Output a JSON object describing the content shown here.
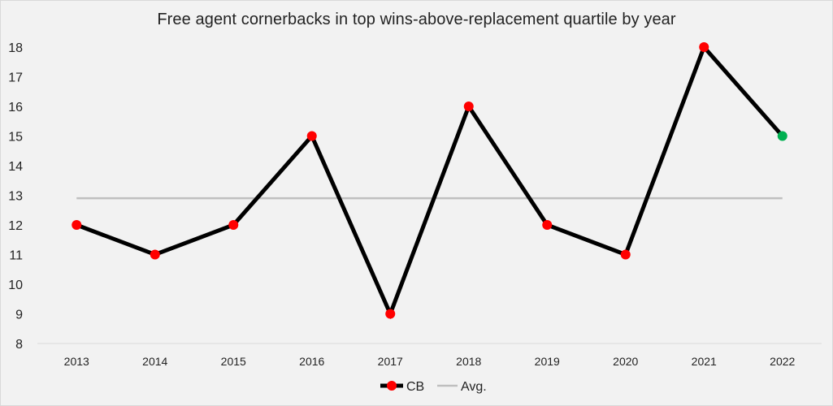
{
  "chart_data": {
    "type": "line",
    "title": "Free agent cornerbacks in top wins-above-replacement  quartile by year",
    "xlabel": "",
    "ylabel": "",
    "categories": [
      "2013",
      "2014",
      "2015",
      "2016",
      "2017",
      "2018",
      "2019",
      "2020",
      "2021",
      "2022"
    ],
    "ylim": [
      8,
      18
    ],
    "yticks": [
      8,
      9,
      10,
      11,
      12,
      13,
      14,
      15,
      16,
      17,
      18
    ],
    "grid": false,
    "legend_position": "bottom",
    "series": [
      {
        "name": "CB",
        "values": [
          12,
          11,
          12,
          15,
          9,
          16,
          12,
          11,
          18,
          15
        ],
        "line_color": "#000000",
        "marker_color": "#ff0000",
        "last_marker_color": "#00b050"
      },
      {
        "name": "Avg.",
        "values": [
          12.9,
          12.9,
          12.9,
          12.9,
          12.9,
          12.9,
          12.9,
          12.9,
          12.9,
          12.9
        ],
        "line_color": "#bfbfbf"
      }
    ]
  }
}
